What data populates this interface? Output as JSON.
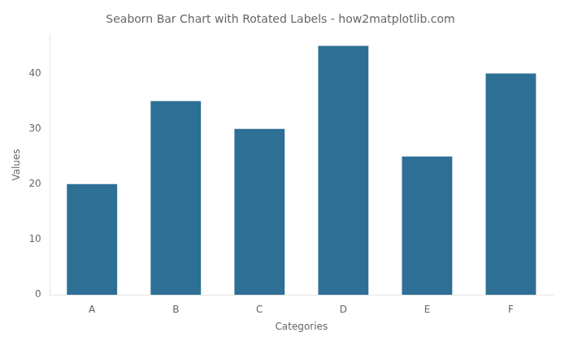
{
  "chart_data": {
    "type": "bar",
    "title": "Seaborn Bar Chart with Rotated Labels - how2matplotlib.com",
    "xlabel": "Categories",
    "ylabel": "Values",
    "categories": [
      "A",
      "B",
      "C",
      "D",
      "E",
      "F"
    ],
    "values": [
      20,
      35,
      30,
      45,
      25,
      40
    ],
    "color": "#2e6f95",
    "ylim": [
      0,
      47
    ],
    "yticks": [
      0,
      10,
      20,
      30,
      40
    ],
    "grid": false
  }
}
